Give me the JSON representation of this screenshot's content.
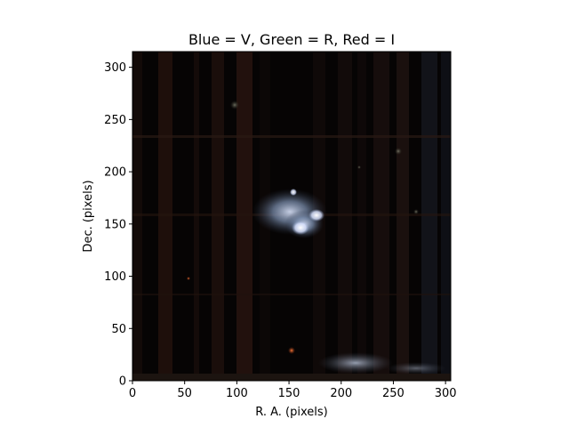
{
  "figure": {
    "title": "Blue = V, Green = R, Red = I",
    "xlabel": "R. A. (pixels)",
    "ylabel": "Dec. (pixels)"
  },
  "axes": {
    "x_range": [
      0,
      305
    ],
    "y_range": [
      0,
      315
    ],
    "x_ticks": [
      0,
      50,
      100,
      150,
      200,
      250,
      300
    ],
    "y_ticks": [
      0,
      50,
      100,
      150,
      200,
      250,
      300
    ]
  },
  "image": {
    "description_tag": "false-color galaxy pair",
    "channels": {
      "blue": "V",
      "green": "R",
      "red": "I"
    },
    "colors": {
      "background": "#060404",
      "galaxy_core": "#f4f6ff",
      "galaxy_halo": "#8aa0c0",
      "strip_dark": "#020101",
      "strip_warm": "#1c100c"
    }
  }
}
